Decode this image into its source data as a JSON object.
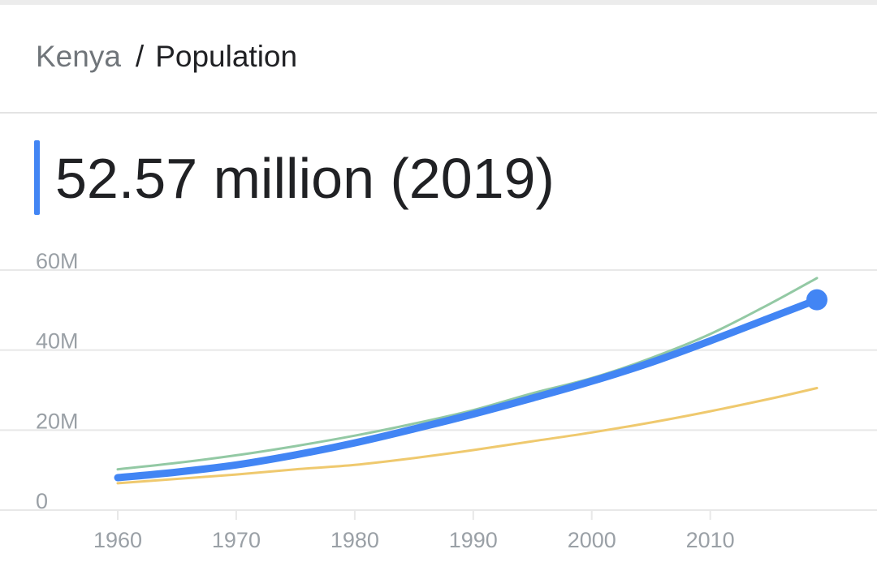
{
  "breadcrumb": {
    "country": "Kenya",
    "separator": "/",
    "metric": "Population"
  },
  "headline": "52.57 million (2019)",
  "colors": {
    "primary_series": "#4285f4",
    "green_series": "#93c9a4",
    "yellow_series": "#efc96e",
    "gridline": "#e8e8e8",
    "tick_label": "#9aa0a6",
    "accent_bar": "#4285f4"
  },
  "chart_data": {
    "type": "line",
    "title": "",
    "xlabel": "",
    "ylabel": "",
    "xlim": [
      1960,
      2019
    ],
    "ylim": [
      0,
      60
    ],
    "y_unit": "M",
    "x_ticks": [
      1960,
      1970,
      1980,
      1990,
      2000,
      2010
    ],
    "y_ticks": [
      {
        "value": 0,
        "label": "0"
      },
      {
        "value": 20,
        "label": "20M"
      },
      {
        "value": 40,
        "label": "40M"
      },
      {
        "value": 60,
        "label": "60M"
      }
    ],
    "grid": true,
    "legend": "none",
    "series": [
      {
        "color": "#93c9a4",
        "x": [
          1960,
          1965,
          1970,
          1975,
          1980,
          1985,
          1990,
          1995,
          2000,
          2005,
          2010,
          2015,
          2019
        ],
        "values": [
          10.2,
          11.8,
          13.7,
          16.0,
          18.6,
          21.6,
          25.0,
          29.2,
          33.0,
          38.0,
          44.0,
          51.5,
          58.0
        ]
      },
      {
        "color": "#efc96e",
        "x": [
          1960,
          1965,
          1970,
          1975,
          1980,
          1985,
          1990,
          1995,
          2000,
          2005,
          2010,
          2015,
          2019
        ],
        "values": [
          6.7,
          7.8,
          8.9,
          10.2,
          11.3,
          13.0,
          15.0,
          17.2,
          19.4,
          21.9,
          24.7,
          27.8,
          30.5
        ]
      },
      {
        "color": "#4285f4",
        "primary": true,
        "x": [
          1960,
          1965,
          1970,
          1975,
          1980,
          1985,
          1990,
          1995,
          2000,
          2005,
          2010,
          2015,
          2019
        ],
        "values": [
          8.1,
          9.5,
          11.3,
          13.8,
          16.8,
          20.3,
          24.0,
          28.0,
          32.2,
          36.9,
          42.3,
          48.0,
          52.57
        ]
      }
    ]
  }
}
